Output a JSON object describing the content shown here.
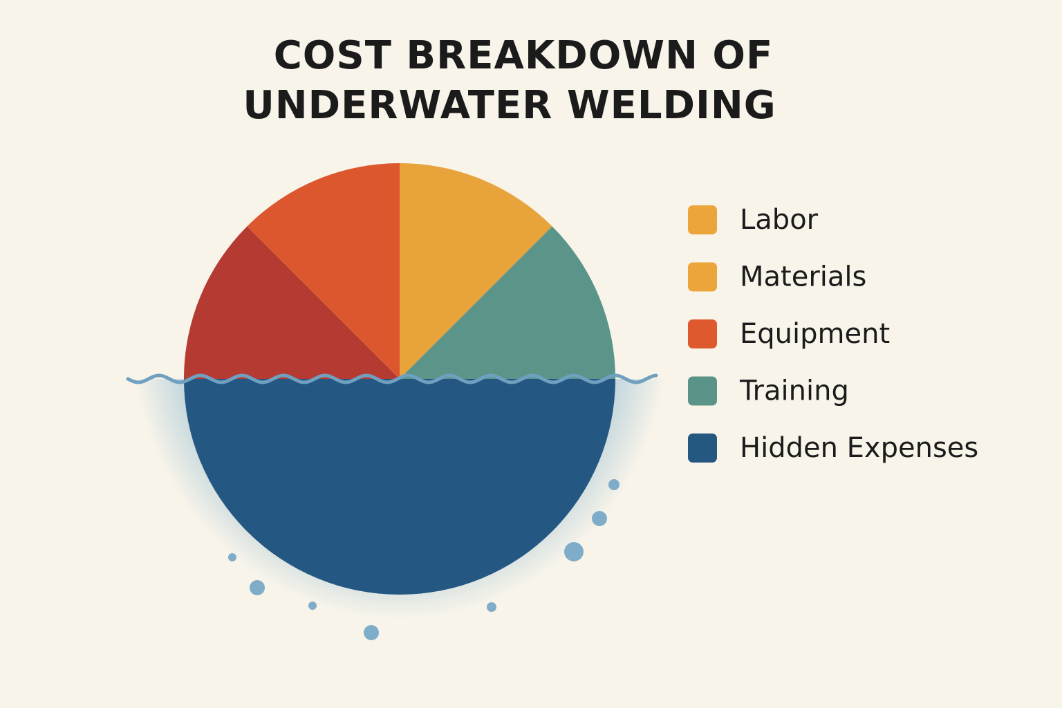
{
  "chart_data": {
    "type": "pie",
    "title": [
      "COST BREAKDOWN OF",
      "UNDERWATER WELDING"
    ],
    "categories": [
      "Labor",
      "Materials",
      "Equipment",
      "Training",
      "Hidden Expenses"
    ],
    "values": [
      12.5,
      12.5,
      12.5,
      12.5,
      50
    ],
    "colors": [
      "#e9a33b",
      "#b53a31",
      "#dc562e",
      "#5b958a",
      "#245781"
    ],
    "legend_colors": [
      "#eba53a",
      "#eba53a",
      "#de5a2e",
      "#5a9388",
      "#245880"
    ],
    "legend": "right"
  }
}
